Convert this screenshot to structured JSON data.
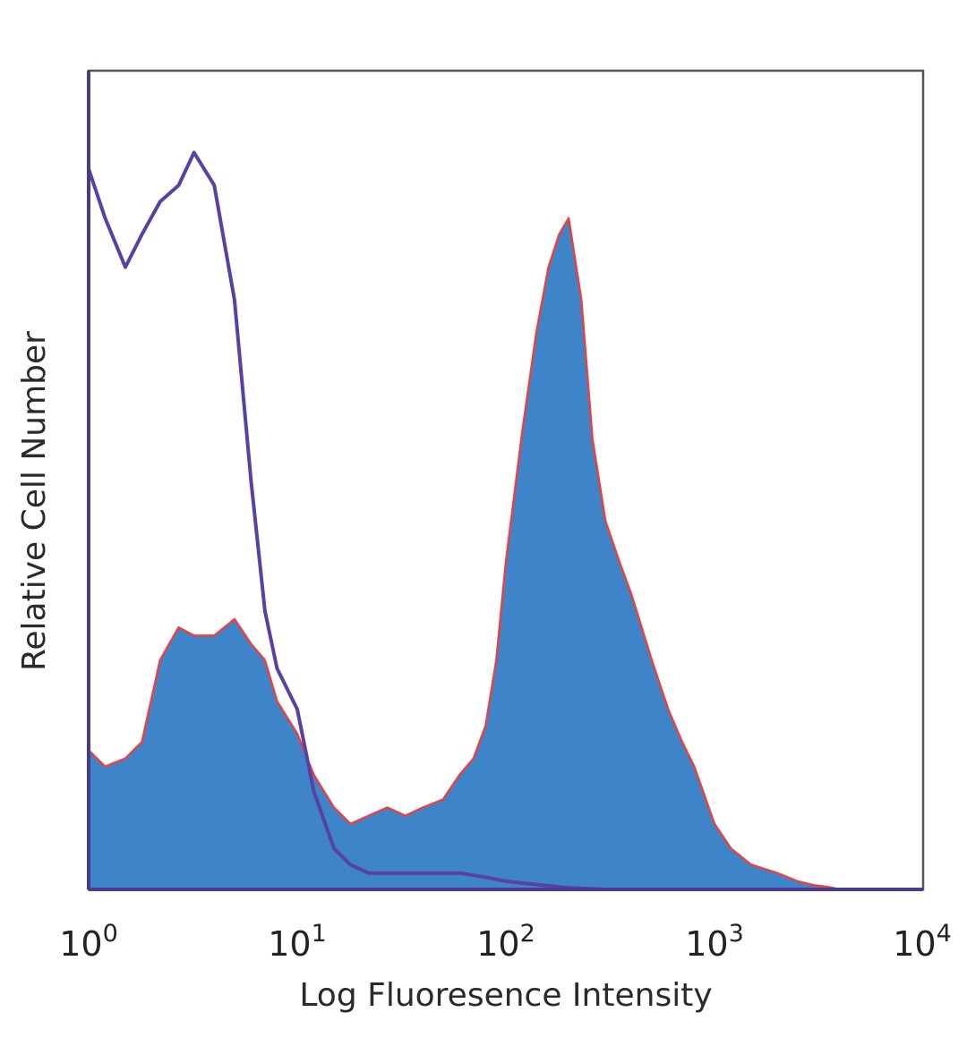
{
  "chart_data": {
    "type": "area",
    "title": "",
    "xlabel": "Log Fluoresence Intensity",
    "ylabel": "Relative Cell Number",
    "x_scale": "log",
    "xlim": [
      1,
      10000
    ],
    "ylim": [
      0,
      100
    ],
    "grid": false,
    "legend": "none",
    "x_ticks": [
      {
        "base": "10",
        "exp": "0",
        "value": 1
      },
      {
        "base": "10",
        "exp": "1",
        "value": 10
      },
      {
        "base": "10",
        "exp": "2",
        "value": 100
      },
      {
        "base": "10",
        "exp": "3",
        "value": 1000
      },
      {
        "base": "10",
        "exp": "4",
        "value": 10000
      }
    ],
    "series": [
      {
        "style": "filled",
        "color": "#3d85c8",
        "edge_color": "#e8413f",
        "x": [
          1,
          1.2,
          1.5,
          1.8,
          2.2,
          2.7,
          3.2,
          4,
          5,
          6,
          7,
          8,
          10,
          12,
          15,
          18,
          22,
          27,
          33,
          40,
          50,
          60,
          70,
          80,
          90,
          100,
          120,
          140,
          160,
          180,
          200,
          230,
          260,
          300,
          350,
          400,
          500,
          600,
          700,
          800,
          1000,
          1200,
          1500,
          2000,
          2500,
          3000,
          3500,
          4000,
          10000
        ],
        "y": [
          17,
          15,
          16,
          18,
          28,
          32,
          31,
          31,
          33,
          30,
          28,
          23,
          19,
          14,
          10,
          8,
          9,
          10,
          9,
          10,
          11,
          14,
          16,
          20,
          28,
          40,
          56,
          68,
          76,
          80,
          82,
          72,
          55,
          45,
          40,
          36,
          28,
          22,
          18,
          15,
          8,
          5,
          3,
          2,
          1,
          0.5,
          0.3,
          0,
          0
        ]
      },
      {
        "style": "outline",
        "color": "#5a3fa6",
        "x": [
          1,
          1.2,
          1.5,
          1.8,
          2.2,
          2.7,
          3.2,
          4,
          5,
          6,
          7,
          8,
          10,
          12,
          15,
          18,
          22,
          27,
          33,
          40,
          50,
          60,
          80,
          100,
          150,
          200,
          300,
          500,
          1000,
          10000
        ],
        "y": [
          88,
          82,
          76,
          80,
          84,
          86,
          90,
          86,
          72,
          50,
          34,
          27,
          22,
          12,
          5,
          3,
          2,
          2,
          2,
          2,
          2,
          2,
          1.5,
          1,
          0.5,
          0.2,
          0,
          0,
          0,
          0
        ]
      }
    ]
  }
}
